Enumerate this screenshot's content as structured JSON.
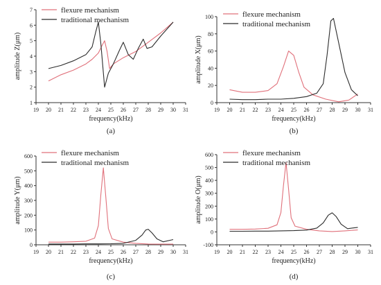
{
  "colors": {
    "flexure": "#e0707a",
    "traditional": "#2b2b2b",
    "axis": "#333333"
  },
  "chart_data": [
    {
      "id": "a",
      "type": "line",
      "caption": "(a)",
      "xlabel": "frequency(kHz)",
      "ylabel": "amplitude Z(μm)",
      "xlim": [
        19,
        31
      ],
      "ylim": [
        1,
        7
      ],
      "xticks": [
        "19",
        "20",
        "21",
        "22",
        "23",
        "24",
        "25",
        "26",
        "27",
        "28",
        "29",
        "30",
        "31"
      ],
      "yticks": [
        "1",
        "2",
        "3",
        "4",
        "5",
        "6",
        "7"
      ],
      "legend_position": "top-left",
      "series": [
        {
          "name": "flexure mechanism",
          "color_key": "flexure",
          "x": [
            20,
            21,
            22,
            23,
            23.5,
            24,
            24.3,
            24.5,
            24.7,
            24.9,
            25.2,
            26,
            27,
            28,
            29,
            30
          ],
          "y": [
            2.4,
            2.8,
            3.1,
            3.5,
            3.8,
            4.2,
            4.7,
            5.0,
            4.3,
            3.2,
            3.5,
            3.9,
            4.3,
            4.9,
            5.5,
            6.2
          ]
        },
        {
          "name": "traditional mechanism",
          "color_key": "traditional",
          "x": [
            20,
            21,
            22,
            23,
            23.5,
            23.8,
            24,
            24.2,
            24.5,
            24.8,
            25.2,
            25.7,
            26,
            26.4,
            26.8,
            27.2,
            27.6,
            27.9,
            28.3,
            29,
            30
          ],
          "y": [
            3.2,
            3.4,
            3.7,
            4.1,
            4.6,
            5.6,
            6.2,
            4.8,
            2.0,
            2.9,
            3.5,
            4.4,
            4.9,
            4.1,
            3.8,
            4.5,
            5.1,
            4.5,
            4.6,
            5.3,
            6.2
          ]
        }
      ]
    },
    {
      "id": "b",
      "type": "line",
      "caption": "(b)",
      "xlabel": "frequency(kHz)",
      "ylabel": "amplitude X(μm)",
      "xlim": [
        19,
        31
      ],
      "ylim": [
        0,
        100
      ],
      "xticks": [
        "19",
        "20",
        "21",
        "22",
        "23",
        "24",
        "25",
        "26",
        "27",
        "28",
        "29",
        "30",
        "31"
      ],
      "yticks": [
        "0",
        "20",
        "40",
        "60",
        "80",
        "100"
      ],
      "legend_position": "top-left",
      "series": [
        {
          "name": "flexure mechanism",
          "color_key": "flexure",
          "x": [
            20,
            21,
            22,
            23,
            23.7,
            24.2,
            24.6,
            25,
            25.4,
            25.8,
            26.5,
            27.5,
            28.5,
            29.3,
            30
          ],
          "y": [
            15,
            12,
            12,
            14,
            22,
            42,
            60,
            55,
            35,
            18,
            9,
            4,
            1,
            3,
            10
          ]
        },
        {
          "name": "traditional mechanism",
          "color_key": "traditional",
          "x": [
            20,
            21,
            22,
            23,
            24,
            25,
            26,
            26.8,
            27.3,
            27.6,
            27.9,
            28.1,
            28.5,
            29,
            29.5,
            30
          ],
          "y": [
            4,
            3.5,
            3.5,
            4,
            4,
            5,
            7,
            11,
            22,
            55,
            95,
            98,
            70,
            35,
            15,
            8
          ]
        }
      ]
    },
    {
      "id": "c",
      "type": "line",
      "caption": "(c)",
      "xlabel": "frequency(kHz)",
      "ylabel": "amplitude Y(μm)",
      "xlim": [
        19,
        31
      ],
      "ylim": [
        0,
        600
      ],
      "xticks": [
        "19",
        "20",
        "21",
        "22",
        "23",
        "24",
        "25",
        "26",
        "27",
        "28",
        "29",
        "30",
        "31"
      ],
      "yticks": [
        "0",
        "100",
        "200",
        "300",
        "400",
        "500",
        "600"
      ],
      "legend_position": "top-left",
      "series": [
        {
          "name": "flexure mechanism",
          "color_key": "flexure",
          "x": [
            20,
            21,
            22,
            23,
            23.7,
            24,
            24.2,
            24.4,
            24.6,
            24.8,
            25.1,
            26,
            27,
            28,
            29,
            30
          ],
          "y": [
            18,
            18,
            20,
            24,
            45,
            130,
            340,
            520,
            320,
            110,
            40,
            18,
            10,
            5,
            4,
            4
          ]
        },
        {
          "name": "traditional mechanism",
          "color_key": "traditional",
          "x": [
            20,
            21,
            22,
            23,
            24,
            25,
            26,
            27,
            27.5,
            27.8,
            28,
            28.3,
            28.7,
            29.2,
            30
          ],
          "y": [
            5,
            5,
            5,
            6,
            6,
            7,
            10,
            30,
            65,
            100,
            105,
            80,
            40,
            20,
            35
          ]
        }
      ]
    },
    {
      "id": "d",
      "type": "line",
      "caption": "(d)",
      "xlabel": "frequency(kHz)",
      "ylabel": "amplitude O(μm)",
      "xlim": [
        19,
        31
      ],
      "ylim": [
        -100,
        600
      ],
      "xticks": [
        "19",
        "20",
        "21",
        "22",
        "23",
        "24",
        "25",
        "26",
        "27",
        "28",
        "29",
        "30",
        "31"
      ],
      "yticks": [
        "-100",
        "0",
        "100",
        "200",
        "300",
        "400",
        "500",
        "600"
      ],
      "legend_position": "top-left",
      "series": [
        {
          "name": "flexure mechanism",
          "color_key": "flexure",
          "x": [
            20,
            21,
            22,
            23,
            23.7,
            24,
            24.2,
            24.4,
            24.6,
            24.8,
            25.1,
            26,
            27,
            28,
            29,
            30
          ],
          "y": [
            20,
            20,
            22,
            28,
            55,
            150,
            360,
            540,
            330,
            110,
            45,
            20,
            8,
            3,
            8,
            15
          ]
        },
        {
          "name": "traditional mechanism",
          "color_key": "traditional",
          "x": [
            20,
            21,
            22,
            23,
            24,
            25,
            26,
            26.8,
            27.3,
            27.7,
            28,
            28.3,
            28.7,
            29.2,
            30
          ],
          "y": [
            5,
            5,
            6,
            6,
            8,
            10,
            14,
            30,
            70,
            130,
            148,
            120,
            60,
            25,
            35
          ]
        }
      ]
    }
  ]
}
